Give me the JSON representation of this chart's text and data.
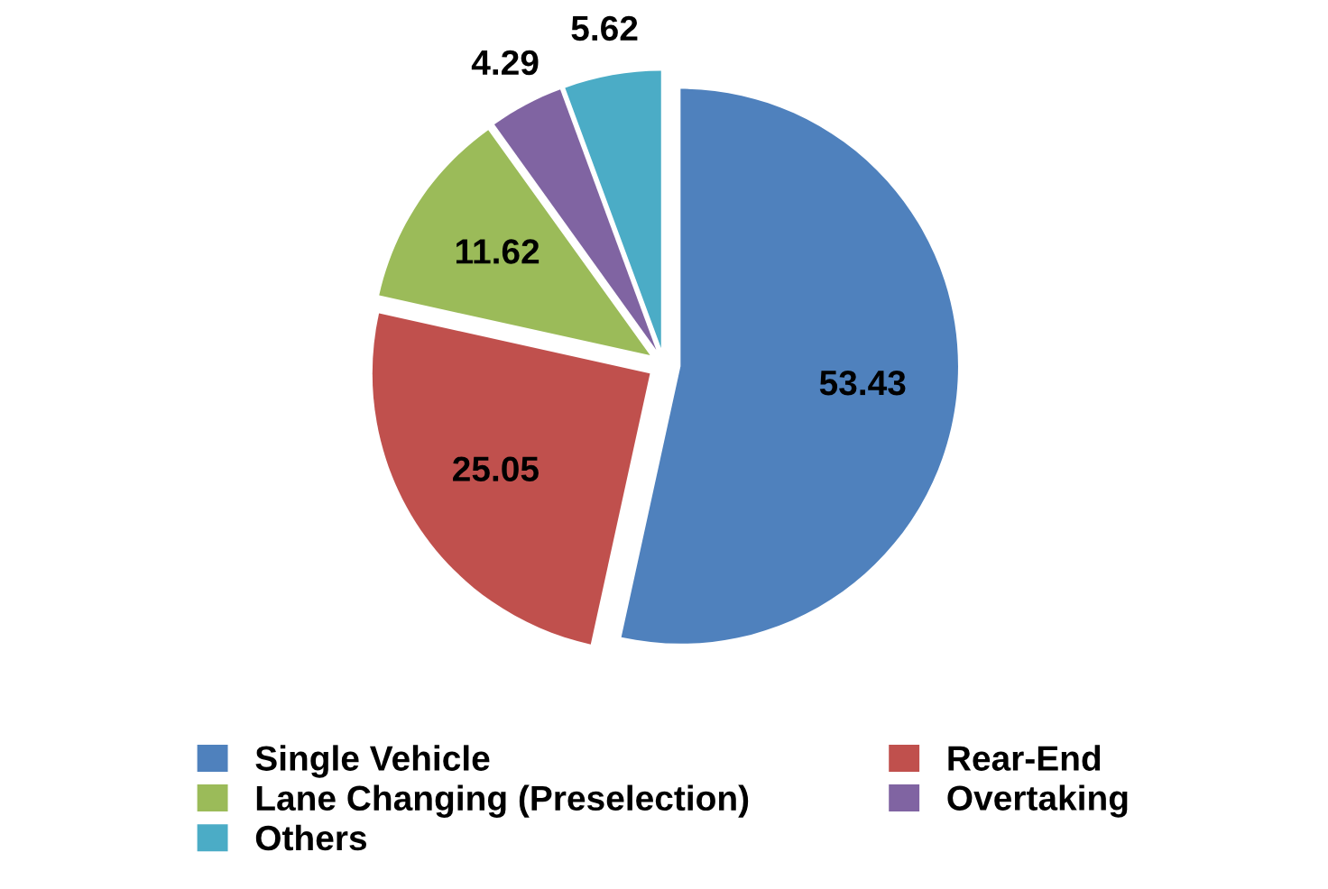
{
  "chart_data": {
    "type": "pie",
    "categories": [
      "Single Vehicle",
      "Rear-End",
      "Lane Changing (Preselection)",
      "Overtaking",
      "Others"
    ],
    "values": [
      53.43,
      25.05,
      11.62,
      4.29,
      5.62
    ],
    "colors": [
      "#4f81bd",
      "#c0504d",
      "#9bbb59",
      "#8064a2",
      "#4bacc6"
    ],
    "data_labels": true,
    "legend": "bottom"
  }
}
